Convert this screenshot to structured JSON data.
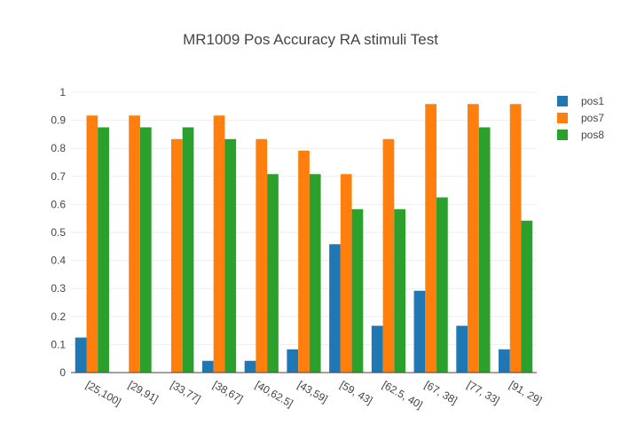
{
  "chart_data": {
    "type": "bar",
    "title": "MR1009 Pos Accuracy RA stimuli Test",
    "xlabel": "",
    "ylabel": "",
    "ylim": [
      0,
      1
    ],
    "yticks": [
      "0",
      "0.1",
      "0.2",
      "0.3",
      "0.4",
      "0.5",
      "0.6",
      "0.7",
      "0.8",
      "0.9",
      "1"
    ],
    "categories": [
      "[25,100]",
      "[29,91]",
      "[33,77]",
      "[38,67]",
      "[40,62.5]",
      "[43,59]",
      "[59, 43]",
      "[62.5, 40]",
      "[67, 38]",
      "[77, 33]",
      "[91, 29]"
    ],
    "series": [
      {
        "name": "pos1",
        "color": "#1f77b4",
        "values": [
          0.125,
          0,
          0,
          0.042,
          0.042,
          0.083,
          0.458,
          0.167,
          0.292,
          0.167,
          0.083
        ]
      },
      {
        "name": "pos7",
        "color": "#ff7f0e",
        "values": [
          0.917,
          0.917,
          0.833,
          0.917,
          0.833,
          0.792,
          0.708,
          0.833,
          0.958,
          0.958,
          0.958
        ]
      },
      {
        "name": "pos8",
        "color": "#2ca02c",
        "values": [
          0.875,
          0.875,
          0.875,
          0.833,
          0.708,
          0.708,
          0.583,
          0.583,
          0.625,
          0.875,
          0.542
        ]
      }
    ],
    "grid": true,
    "legend_position": "top-right"
  }
}
